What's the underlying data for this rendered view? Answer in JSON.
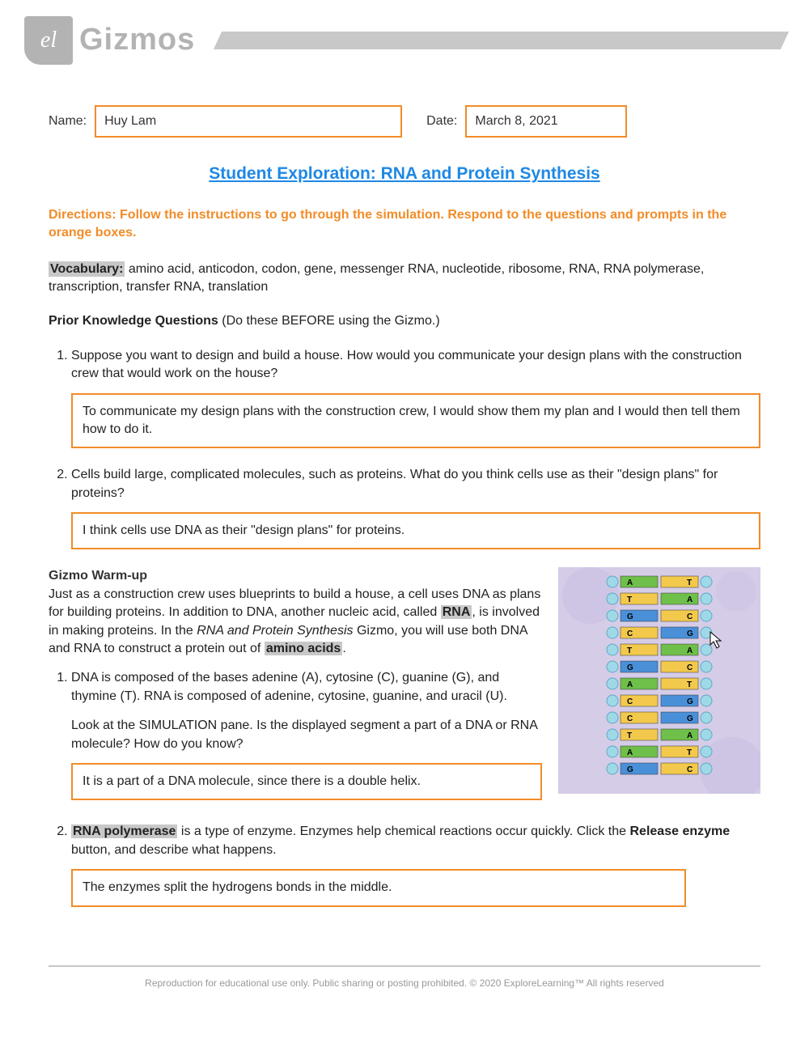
{
  "header": {
    "logo_text": "el",
    "brand": "Gizmos"
  },
  "fields": {
    "name_label": "Name:",
    "name_value": "Huy Lam",
    "date_label": "Date:",
    "date_value": "March 8, 2021"
  },
  "title": "Student Exploration: RNA and Protein Synthesis",
  "directions": "Directions: Follow the instructions to go through the simulation. Respond to the questions and prompts in the orange boxes.",
  "vocab": {
    "label": "Vocabulary:",
    "text": " amino acid, anticodon, codon, gene, messenger RNA, nucleotide, ribosome, RNA, RNA polymerase, transcription, transfer RNA, translation"
  },
  "prior": {
    "heading": "Prior Knowledge Questions ",
    "sub": "(Do these BEFORE using the Gizmo.)",
    "q1": "Suppose you want to design and build a house. How would you communicate your design plans with the construction crew that would work on the house?",
    "a1": "To communicate my design plans with the construction crew, I would show them my plan and I would then tell them how to do it.",
    "q2": "Cells build large, complicated molecules, such as proteins. What do you think cells use as their \"design plans\" for proteins?",
    "a2": "I think cells use DNA as their \"design plans\" for proteins."
  },
  "warmup": {
    "heading": "Gizmo Warm-up",
    "intro1": "Just as a construction crew uses blueprints to build a house, a cell uses DNA as plans for building proteins. In addition to DNA, another nucleic acid, called ",
    "rna": "RNA",
    "intro2": ", is involved in making proteins. In the ",
    "gizmo_name": "RNA and Protein Synthesis",
    "intro3": " Gizmo, you will use both DNA and RNA to construct a protein out of ",
    "amino": "amino acids",
    "intro4": ".",
    "q1a": "DNA is composed of the bases adenine (A), cytosine (C), guanine (G), and thymine (T). RNA is composed of adenine, cytosine, guanine, and uracil (U).",
    "q1b": "Look at the SIMULATION pane. Is the displayed segment a part of a DNA or RNA molecule? How do you know?",
    "a1": "It is a part of a DNA molecule, since there is a double helix.",
    "q2_pre": "",
    "q2_hl": "RNA polymerase",
    "q2_mid": " is a type of enzyme. Enzymes help chemical reactions occur quickly. Click the ",
    "q2_bold": "Release enzyme",
    "q2_end": " button, and describe what happens.",
    "a2": "The enzymes split the hydrogens bonds in the middle."
  },
  "dna_pairs": [
    {
      "l": "A",
      "lc": "#6fbf4b",
      "r": "T",
      "rc": "#f2c94c"
    },
    {
      "l": "T",
      "lc": "#f2c94c",
      "r": "A",
      "rc": "#6fbf4b"
    },
    {
      "l": "G",
      "lc": "#4a90d9",
      "r": "C",
      "rc": "#f2c94c"
    },
    {
      "l": "C",
      "lc": "#f2c94c",
      "r": "G",
      "rc": "#4a90d9"
    },
    {
      "l": "T",
      "lc": "#f2c94c",
      "r": "A",
      "rc": "#6fbf4b"
    },
    {
      "l": "G",
      "lc": "#4a90d9",
      "r": "C",
      "rc": "#f2c94c"
    },
    {
      "l": "A",
      "lc": "#6fbf4b",
      "r": "T",
      "rc": "#f2c94c"
    },
    {
      "l": "C",
      "lc": "#f2c94c",
      "r": "G",
      "rc": "#4a90d9"
    },
    {
      "l": "C",
      "lc": "#f2c94c",
      "r": "G",
      "rc": "#4a90d9"
    },
    {
      "l": "T",
      "lc": "#f2c94c",
      "r": "A",
      "rc": "#6fbf4b"
    },
    {
      "l": "A",
      "lc": "#6fbf4b",
      "r": "T",
      "rc": "#f2c94c"
    },
    {
      "l": "G",
      "lc": "#4a90d9",
      "r": "C",
      "rc": "#f2c94c"
    }
  ],
  "colors": {
    "orange": "#f28c28",
    "blue_link": "#1e88e5",
    "grey": "#c8c8c8",
    "dna_bg": "#d5cce8",
    "backbone": "#9fd9e8"
  },
  "footer": "Reproduction for educational use only. Public sharing or posting prohibited. © 2020 ExploreLearning™ All rights reserved"
}
